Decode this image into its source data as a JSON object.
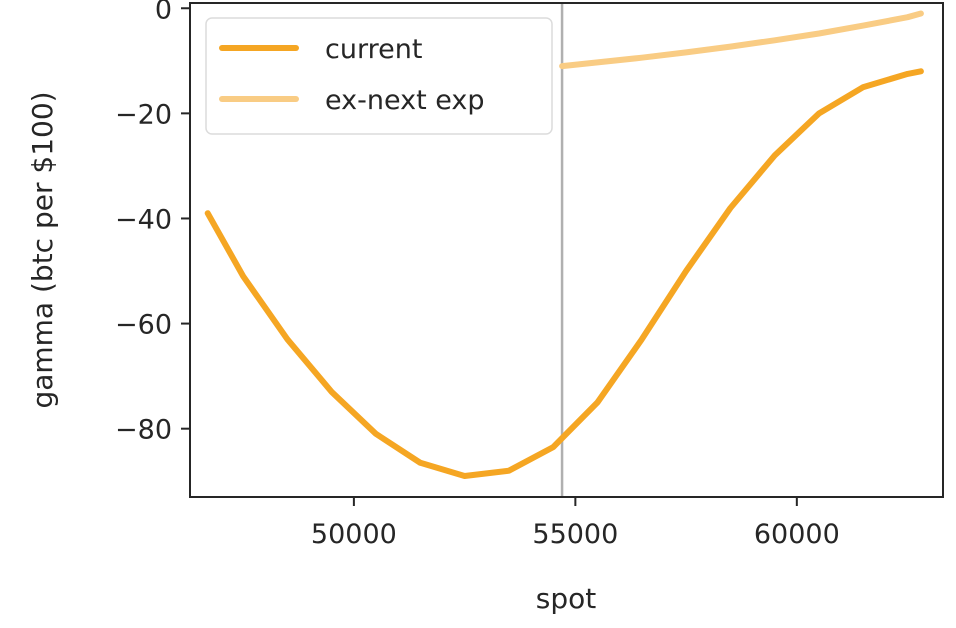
{
  "chart_data": {
    "type": "line",
    "title": "",
    "xlabel": "spot",
    "ylabel": "gamma (btc per $100)",
    "xlim": [
      46300,
      63300
    ],
    "ylim": [
      -93,
      1
    ],
    "xticks": [
      50000,
      55000,
      60000
    ],
    "yticks": [
      0,
      -20,
      -40,
      -60,
      -80
    ],
    "grid": false,
    "legend": "upper-left",
    "vline": {
      "x": 54700,
      "color": "#b0b0b0"
    },
    "series": [
      {
        "name": "current",
        "color": "#f5a623",
        "x": [
          46700,
          47500,
          48500,
          49500,
          50500,
          51500,
          52500,
          53500,
          54500,
          55500,
          56500,
          57500,
          58500,
          59500,
          60500,
          61500,
          62500,
          62800
        ],
        "y": [
          -39,
          -51,
          -63,
          -73,
          -81,
          -86.5,
          -89,
          -88,
          -83.5,
          -75,
          -63,
          -50,
          -38,
          -28,
          -20,
          -15,
          -12.5,
          -12
        ]
      },
      {
        "name": "ex-next exp",
        "color": "#f9cc84",
        "x": [
          54700,
          55500,
          56500,
          57500,
          58500,
          59500,
          60500,
          61500,
          62500,
          62800
        ],
        "y": [
          -11,
          -10.3,
          -9.4,
          -8.4,
          -7.3,
          -6.1,
          -4.8,
          -3.3,
          -1.7,
          -1
        ]
      }
    ]
  }
}
